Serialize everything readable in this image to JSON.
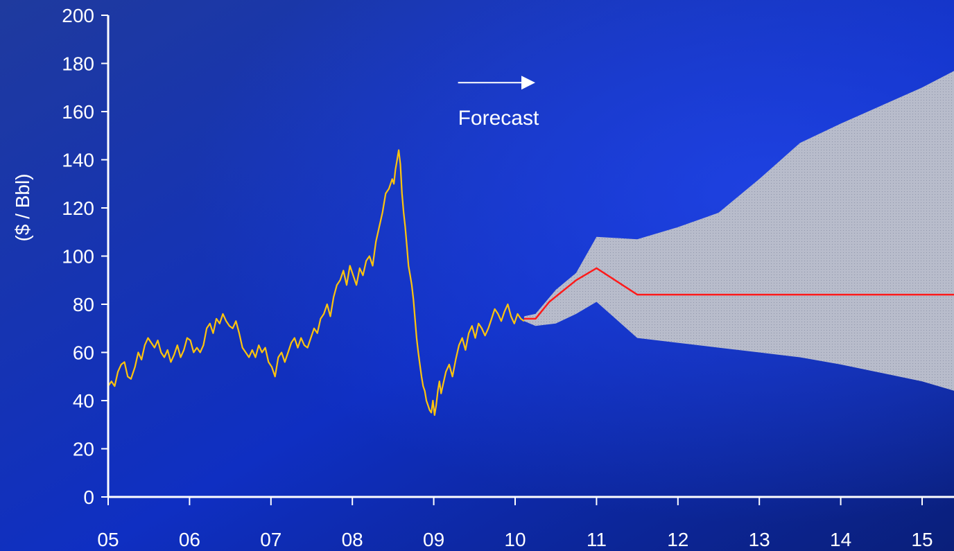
{
  "chart_data": {
    "type": "line",
    "title": "",
    "xlabel": "",
    "ylabel": "($ / Bbl)",
    "ylim": [
      0,
      200
    ],
    "xlim": [
      2005,
      2015.4
    ],
    "yticks": [
      0,
      20,
      40,
      60,
      80,
      100,
      120,
      140,
      160,
      180,
      200
    ],
    "ytick_labels": [
      "0",
      "20",
      "40",
      "60",
      "80",
      "100",
      "120",
      "140",
      "160",
      "180",
      "200"
    ],
    "xticks": [
      2005,
      2006,
      2007,
      2008,
      2009,
      2010,
      2011,
      2012,
      2013,
      2014,
      2015
    ],
    "xtick_labels": [
      "05",
      "06",
      "07",
      "08",
      "09",
      "10",
      "11",
      "12",
      "13",
      "14",
      "15"
    ],
    "grid": false,
    "legend": "none",
    "annotations": [
      {
        "text": "Forecast",
        "x": 2010.15,
        "y": 158,
        "arrow_from": [
          2010.15,
          172
        ],
        "arrow_to": [
          2011.15,
          172
        ]
      }
    ],
    "colors": {
      "background_top": "#1a3bd0",
      "background_bottom": "#0b1f6e",
      "historical_line": "#ffc40d",
      "forecast_line": "#ff1a1a",
      "band_fill": "#b8bccb",
      "axis": "#ffffff",
      "text": "#ffffff"
    },
    "series": [
      {
        "name": "",
        "kind": "historical",
        "x": [
          2005.0,
          2005.04,
          2005.08,
          2005.12,
          2005.16,
          2005.2,
          2005.24,
          2005.28,
          2005.33,
          2005.37,
          2005.41,
          2005.45,
          2005.49,
          2005.53,
          2005.57,
          2005.61,
          2005.65,
          2005.69,
          2005.73,
          2005.77,
          2005.81,
          2005.85,
          2005.89,
          2005.93,
          2005.97,
          2006.01,
          2006.05,
          2006.09,
          2006.13,
          2006.17,
          2006.21,
          2006.25,
          2006.29,
          2006.33,
          2006.37,
          2006.41,
          2006.45,
          2006.49,
          2006.53,
          2006.57,
          2006.61,
          2006.65,
          2006.69,
          2006.73,
          2006.77,
          2006.81,
          2006.85,
          2006.89,
          2006.93,
          2006.97,
          2007.01,
          2007.05,
          2007.09,
          2007.13,
          2007.17,
          2007.21,
          2007.25,
          2007.29,
          2007.33,
          2007.37,
          2007.41,
          2007.45,
          2007.49,
          2007.53,
          2007.57,
          2007.61,
          2007.65,
          2007.69,
          2007.73,
          2007.77,
          2007.81,
          2007.85,
          2007.89,
          2007.93,
          2007.97,
          2008.01,
          2008.05,
          2008.09,
          2008.13,
          2008.17,
          2008.21,
          2008.25,
          2008.29,
          2008.33,
          2008.37,
          2008.41,
          2008.45,
          2008.49,
          2008.51,
          2008.53,
          2008.55,
          2008.57,
          2008.59,
          2008.61,
          2008.63,
          2008.65,
          2008.67,
          2008.69,
          2008.71,
          2008.73,
          2008.75,
          2008.77,
          2008.79,
          2008.81,
          2008.83,
          2008.85,
          2008.87,
          2008.89,
          2008.91,
          2008.93,
          2008.95,
          2008.97,
          2008.99,
          2009.01,
          2009.03,
          2009.05,
          2009.07,
          2009.09,
          2009.11,
          2009.15,
          2009.19,
          2009.23,
          2009.27,
          2009.31,
          2009.35,
          2009.39,
          2009.43,
          2009.47,
          2009.51,
          2009.55,
          2009.59,
          2009.63,
          2009.67,
          2009.71,
          2009.75,
          2009.79,
          2009.83,
          2009.87,
          2009.91,
          2009.95,
          2009.99,
          2010.03,
          2010.07,
          2010.11
        ],
        "y": [
          46,
          48,
          46,
          52,
          55,
          56,
          50,
          49,
          54,
          60,
          57,
          63,
          66,
          64,
          62,
          65,
          60,
          58,
          61,
          56,
          59,
          63,
          58,
          61,
          66,
          65,
          60,
          62,
          60,
          63,
          70,
          72,
          68,
          74,
          72,
          76,
          73,
          71,
          70,
          73,
          68,
          62,
          60,
          58,
          61,
          58,
          63,
          60,
          62,
          56,
          54,
          50,
          58,
          60,
          56,
          60,
          64,
          66,
          62,
          66,
          63,
          62,
          66,
          70,
          68,
          74,
          76,
          80,
          75,
          83,
          88,
          90,
          94,
          88,
          96,
          92,
          88,
          95,
          92,
          98,
          100,
          96,
          106,
          112,
          118,
          126,
          128,
          132,
          130,
          136,
          140,
          144,
          138,
          126,
          118,
          112,
          104,
          96,
          92,
          88,
          82,
          74,
          66,
          60,
          55,
          50,
          46,
          44,
          40,
          38,
          36,
          35,
          40,
          34,
          38,
          44,
          48,
          43,
          46,
          52,
          55,
          50,
          57,
          63,
          66,
          61,
          68,
          71,
          66,
          72,
          70,
          67,
          70,
          74,
          78,
          76,
          73,
          77,
          80,
          75,
          72,
          76,
          74,
          73
        ]
      },
      {
        "name": "",
        "kind": "forecast",
        "x": [
          2010.11,
          2010.25,
          2010.42,
          2010.75,
          2011.0,
          2011.5,
          2012.0,
          2013.0,
          2014.0,
          2015.0,
          2015.4
        ],
        "y": [
          74,
          74,
          81,
          90,
          95,
          84,
          84,
          84,
          84,
          84,
          84
        ]
      }
    ],
    "band": {
      "name": "",
      "x": [
        2010.11,
        2010.25,
        2010.5,
        2010.75,
        2011.0,
        2011.5,
        2012.0,
        2012.5,
        2013.0,
        2013.5,
        2014.0,
        2015.0,
        2015.4
      ],
      "upper": [
        75,
        76,
        86,
        93,
        108,
        107,
        112,
        118,
        132,
        147,
        155,
        170,
        177
      ],
      "lower": [
        73,
        71,
        72,
        76,
        81,
        66,
        64,
        62,
        60,
        58,
        55,
        48,
        44
      ]
    }
  }
}
